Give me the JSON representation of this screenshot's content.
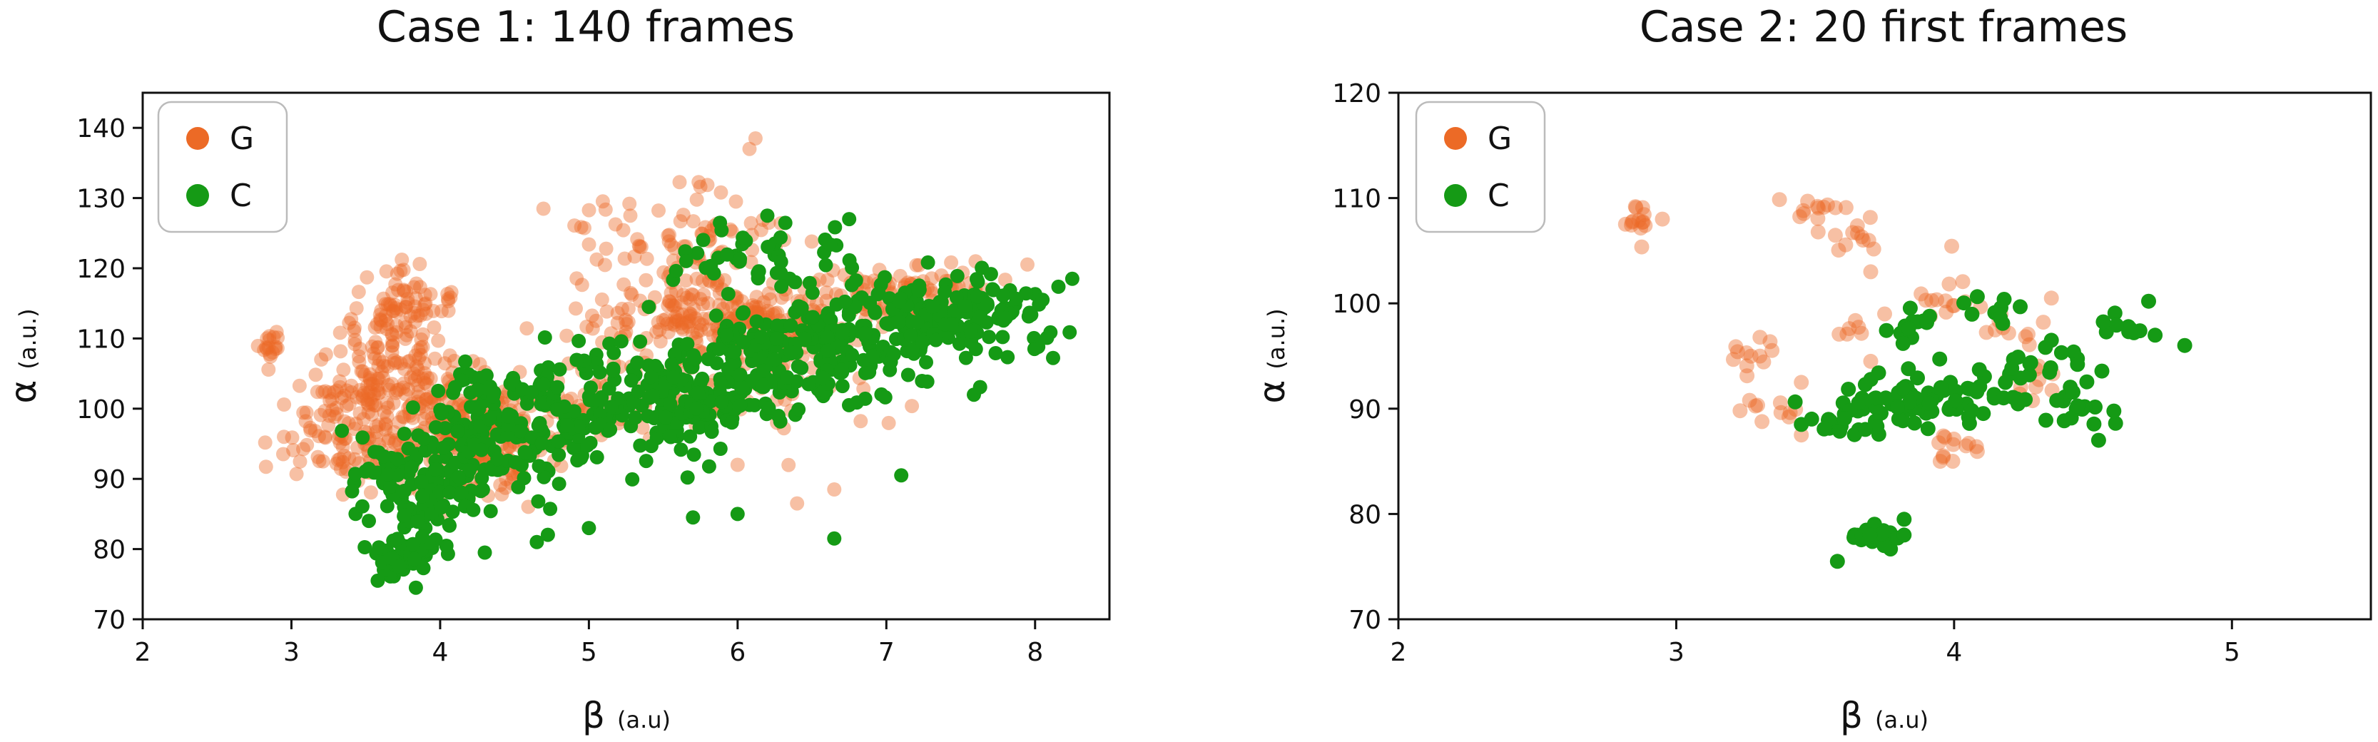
{
  "colors": {
    "G": "#ec6a26",
    "C": "#159a15",
    "G_faint": "#f2a57a"
  },
  "chart_data": [
    {
      "type": "scatter",
      "title": "Case 1: 140 frames",
      "xlabel": "β",
      "xlabel_unit": "(a.u)",
      "ylabel": "α",
      "ylabel_unit": "(a.u.)",
      "xlim": [
        2,
        8.5
      ],
      "ylim": [
        70,
        145
      ],
      "xticks": [
        2,
        3,
        4,
        5,
        6,
        7,
        8
      ],
      "yticks": [
        70,
        80,
        90,
        100,
        110,
        120,
        130,
        140
      ],
      "legend_position": "top-left",
      "series": [
        {
          "name": "G",
          "color": "#ec6a26",
          "clusters": [
            {
              "x": 2.85,
              "y": 108,
              "sx": 0.05,
              "sy": 1.5,
              "n": 18
            },
            {
              "x": 3.75,
              "y": 114,
              "sx": 0.15,
              "sy": 3.0,
              "n": 70
            },
            {
              "x": 3.6,
              "y": 105,
              "sx": 0.25,
              "sy": 4.0,
              "n": 120
            },
            {
              "x": 3.4,
              "y": 96,
              "sx": 0.25,
              "sy": 3.5,
              "n": 100
            },
            {
              "x": 4.25,
              "y": 95,
              "sx": 0.25,
              "sy": 4.0,
              "n": 200
            },
            {
              "x": 4.0,
              "y": 100,
              "sx": 0.3,
              "sy": 4.0,
              "n": 80
            },
            {
              "x": 5.6,
              "y": 123,
              "sx": 0.4,
              "sy": 4.0,
              "n": 90
            },
            {
              "x": 5.7,
              "y": 113,
              "sx": 0.35,
              "sy": 3.0,
              "n": 120
            },
            {
              "x": 6.2,
              "y": 112,
              "sx": 0.3,
              "sy": 3.0,
              "n": 100
            },
            {
              "x": 7.0,
              "y": 116,
              "sx": 0.35,
              "sy": 2.5,
              "n": 110
            },
            {
              "x": 5.0,
              "y": 102,
              "sx": 0.4,
              "sy": 4.0,
              "n": 80
            },
            {
              "x": 6.2,
              "y": 105,
              "sx": 0.5,
              "sy": 5.0,
              "n": 70
            }
          ],
          "points": [
            {
              "x": 6.12,
              "y": 138.5
            },
            {
              "x": 6.08,
              "y": 137.0
            },
            {
              "x": 6.4,
              "y": 86.5
            },
            {
              "x": 6.65,
              "y": 88.5
            },
            {
              "x": 6.0,
              "y": 92.0
            },
            {
              "x": 7.6,
              "y": 121.0
            },
            {
              "x": 3.2,
              "y": 107.0
            },
            {
              "x": 2.95,
              "y": 96.0
            }
          ]
        },
        {
          "name": "C",
          "color": "#159a15",
          "clusters": [
            {
              "x": 3.75,
              "y": 79,
              "sx": 0.12,
              "sy": 1.5,
              "n": 50
            },
            {
              "x": 3.9,
              "y": 89,
              "sx": 0.25,
              "sy": 3.0,
              "n": 120
            },
            {
              "x": 4.5,
              "y": 96,
              "sx": 0.4,
              "sy": 4.0,
              "n": 150
            },
            {
              "x": 5.5,
              "y": 102,
              "sx": 0.4,
              "sy": 4.0,
              "n": 200
            },
            {
              "x": 6.5,
              "y": 108,
              "sx": 0.4,
              "sy": 4.0,
              "n": 200
            },
            {
              "x": 7.4,
              "y": 113,
              "sx": 0.35,
              "sy": 3.0,
              "n": 150
            },
            {
              "x": 6.2,
              "y": 122,
              "sx": 0.35,
              "sy": 2.5,
              "n": 45
            },
            {
              "x": 4.3,
              "y": 103,
              "sx": 0.2,
              "sy": 1.5,
              "n": 30
            }
          ],
          "points": [
            {
              "x": 3.58,
              "y": 75.5
            },
            {
              "x": 4.3,
              "y": 79.5
            },
            {
              "x": 4.65,
              "y": 81.0
            },
            {
              "x": 5.0,
              "y": 83.0
            },
            {
              "x": 5.7,
              "y": 84.5
            },
            {
              "x": 6.0,
              "y": 85.0
            },
            {
              "x": 6.65,
              "y": 81.5
            },
            {
              "x": 7.1,
              "y": 90.5
            },
            {
              "x": 8.25,
              "y": 118.5
            },
            {
              "x": 8.05,
              "y": 115.5
            },
            {
              "x": 6.75,
              "y": 127.0
            },
            {
              "x": 6.2,
              "y": 127.5
            }
          ]
        }
      ]
    },
    {
      "type": "scatter",
      "title": "Case 2: 20 first frames",
      "xlabel": "β",
      "xlabel_unit": "(a.u)",
      "ylabel": "α",
      "ylabel_unit": "(a.u.)",
      "xlim": [
        2,
        5.5
      ],
      "ylim": [
        70,
        120
      ],
      "xticks": [
        2,
        3,
        4,
        5
      ],
      "yticks": [
        70,
        80,
        90,
        100,
        110,
        120
      ],
      "legend_position": "top-left",
      "series": [
        {
          "name": "G",
          "color": "#ec6a26",
          "clusters": [
            {
              "x": 2.85,
              "y": 108,
              "sx": 0.03,
              "sy": 1.2,
              "n": 14
            },
            {
              "x": 3.5,
              "y": 109,
              "sx": 0.05,
              "sy": 0.8,
              "n": 12
            },
            {
              "x": 3.63,
              "y": 106,
              "sx": 0.04,
              "sy": 1.0,
              "n": 12
            },
            {
              "x": 3.62,
              "y": 97.5,
              "sx": 0.05,
              "sy": 0.5,
              "n": 6
            },
            {
              "x": 3.3,
              "y": 95.5,
              "sx": 0.05,
              "sy": 0.8,
              "n": 12
            },
            {
              "x": 3.33,
              "y": 89.8,
              "sx": 0.06,
              "sy": 0.6,
              "n": 10
            },
            {
              "x": 3.98,
              "y": 101,
              "sx": 0.07,
              "sy": 1.5,
              "n": 14
            },
            {
              "x": 4.2,
              "y": 97.5,
              "sx": 0.05,
              "sy": 1.0,
              "n": 10
            },
            {
              "x": 4.0,
              "y": 86.5,
              "sx": 0.05,
              "sy": 1.0,
              "n": 12
            },
            {
              "x": 4.25,
              "y": 93,
              "sx": 0.08,
              "sy": 1.0,
              "n": 10
            }
          ],
          "points": [
            {
              "x": 2.95,
              "y": 108.0
            },
            {
              "x": 3.45,
              "y": 92.5
            },
            {
              "x": 3.45,
              "y": 87.5
            },
            {
              "x": 3.7,
              "y": 103.0
            },
            {
              "x": 3.75,
              "y": 99.0
            },
            {
              "x": 4.35,
              "y": 100.5
            },
            {
              "x": 3.95,
              "y": 85.0
            },
            {
              "x": 3.7,
              "y": 94.5
            }
          ]
        },
        {
          "name": "C",
          "color": "#159a15",
          "clusters": [
            {
              "x": 3.7,
              "y": 77.8,
              "sx": 0.05,
              "sy": 0.5,
              "n": 22
            },
            {
              "x": 3.7,
              "y": 89.5,
              "sx": 0.12,
              "sy": 1.2,
              "n": 40
            },
            {
              "x": 3.95,
              "y": 91,
              "sx": 0.12,
              "sy": 1.5,
              "n": 50
            },
            {
              "x": 4.15,
              "y": 99.5,
              "sx": 0.05,
              "sy": 0.8,
              "n": 10
            },
            {
              "x": 3.85,
              "y": 97.5,
              "sx": 0.06,
              "sy": 0.8,
              "n": 12
            },
            {
              "x": 4.35,
              "y": 93,
              "sx": 0.1,
              "sy": 1.5,
              "n": 25
            },
            {
              "x": 4.45,
              "y": 89.5,
              "sx": 0.08,
              "sy": 1.5,
              "n": 12
            },
            {
              "x": 4.6,
              "y": 98.0,
              "sx": 0.06,
              "sy": 0.8,
              "n": 10
            }
          ],
          "points": [
            {
              "x": 3.58,
              "y": 75.5
            },
            {
              "x": 3.82,
              "y": 79.5
            },
            {
              "x": 3.82,
              "y": 78.0
            },
            {
              "x": 4.83,
              "y": 96.0
            },
            {
              "x": 4.7,
              "y": 100.2
            },
            {
              "x": 4.52,
              "y": 87.0
            },
            {
              "x": 4.35,
              "y": 96.5
            },
            {
              "x": 3.45,
              "y": 88.5
            }
          ]
        }
      ]
    }
  ]
}
